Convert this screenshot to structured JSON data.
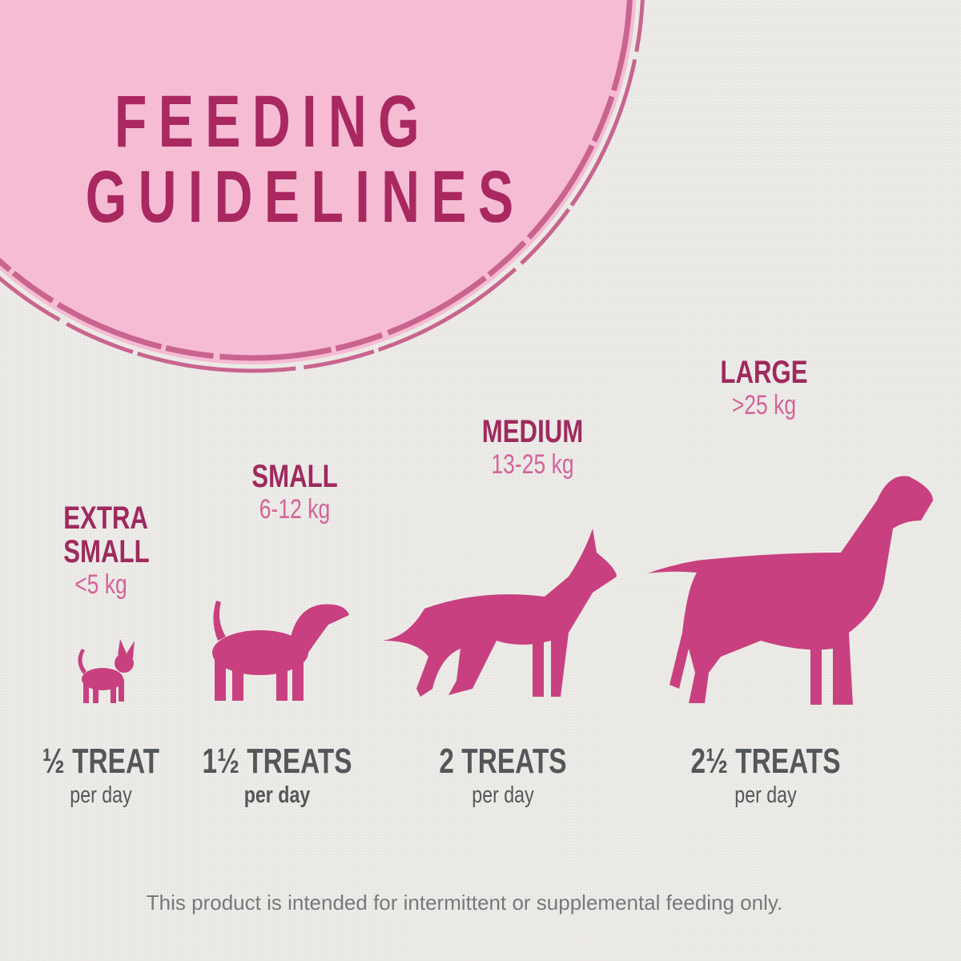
{
  "title": {
    "line1": "FEEDING",
    "line2": "GUIDELINES"
  },
  "colors": {
    "circle": "#f6bcd4",
    "ring": "#c9648f",
    "title": "#a8285f",
    "size_label": "#9e2a5e",
    "weight": "#d4639a",
    "dog": "#c8407f",
    "text": "#54575a"
  },
  "sizes": [
    {
      "label": "EXTRA SMALL",
      "weight": "<5 kg",
      "amount": "½ TREAT",
      "unit": "per day",
      "icon": "chihuahua-icon"
    },
    {
      "label": "SMALL",
      "weight": "6-12 kg",
      "amount": "1½ TREATS",
      "unit": "per day",
      "icon": "beagle-icon"
    },
    {
      "label": "MEDIUM",
      "weight": "13-25 kg",
      "amount": "2 TREATS",
      "unit": "per day",
      "icon": "shepherd-dog-icon"
    },
    {
      "label": "LARGE",
      "weight": ">25 kg",
      "amount": "2½ TREATS",
      "unit": "per day",
      "icon": "great-dane-icon"
    }
  ],
  "footnote": "This product is intended for intermittent or supplemental feeding only."
}
